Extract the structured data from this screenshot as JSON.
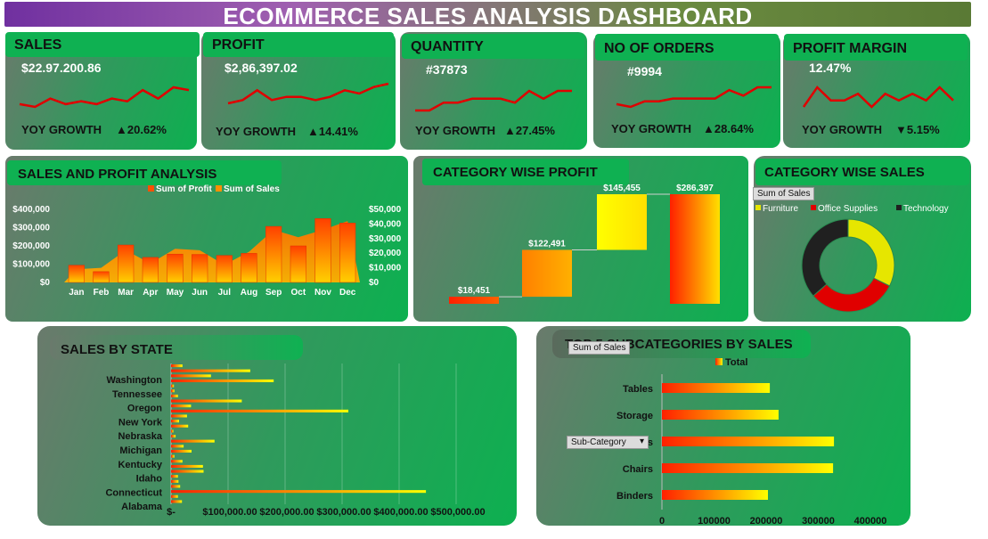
{
  "title": "ECOMMERCE SALES ANALYSIS DASHBOARD",
  "kpis": [
    {
      "label": "SALES",
      "value": "$22.97.200.86",
      "growth_label": "YOY GROWTH",
      "growth": "▲20.62%",
      "trend": [
        5,
        4,
        7,
        5,
        6,
        5,
        7,
        6,
        10,
        7,
        11,
        10
      ]
    },
    {
      "label": "PROFIT",
      "value": "$2,86,397.02",
      "growth_label": "YOY GROWTH",
      "growth": "▲14.41%",
      "trend": [
        4,
        5,
        8,
        5,
        6,
        6,
        5,
        6,
        8,
        7,
        9,
        10
      ]
    },
    {
      "label": "QUANTITY",
      "value": "#37873",
      "growth_label": "YOY GROWTH",
      "growth": "▲27.45%",
      "trend": [
        4,
        4,
        6,
        6,
        7,
        7,
        7,
        6,
        9,
        7,
        9,
        9
      ]
    },
    {
      "label": "NO OF ORDERS",
      "value": "#9994",
      "growth_label": "YOY GROWTH",
      "growth": "▲28.64%",
      "trend": [
        5,
        4,
        6,
        6,
        7,
        7,
        7,
        7,
        10,
        8,
        11,
        11
      ]
    },
    {
      "label": "PROFIT MARGIN",
      "value": "12.47%",
      "growth_label": "YOY GROWTH",
      "growth": "▼5.15%",
      "trend": [
        6,
        9,
        7,
        7,
        8,
        6,
        8,
        7,
        8,
        7,
        9,
        7
      ]
    }
  ],
  "colors": {
    "card_green": "#0fb152",
    "line_red": "#e00000",
    "bar_orange": "#ff8000",
    "bar_yellow": "#ffff00",
    "bar_red": "#ff2000"
  },
  "chart_data": [
    {
      "type": "bar",
      "title": "SALES AND PROFIT ANALYSIS",
      "categories": [
        "Jan",
        "Feb",
        "Mar",
        "Apr",
        "May",
        "Jun",
        "Jul",
        "Aug",
        "Sep",
        "Oct",
        "Nov",
        "Dec"
      ],
      "series": [
        {
          "name": "Sum of Sales",
          "values": [
            94000,
            59000,
            205000,
            137000,
            155000,
            153000,
            148000,
            159000,
            307000,
            200000,
            350000,
            325000
          ],
          "axis": "left"
        },
        {
          "name": "Sum of Profit",
          "values": [
            9000,
            10000,
            22000,
            13000,
            23000,
            22000,
            12000,
            21000,
            36000,
            31000,
            36000,
            42000
          ],
          "axis": "right"
        }
      ],
      "left_ticks": [
        "$400,000",
        "$300,000",
        "$200,000",
        "$100,000",
        "$0"
      ],
      "right_ticks": [
        "$50,000",
        "$40,000",
        "$30,000",
        "$20,000",
        "$10,000",
        "$0"
      ],
      "ylim": [
        0,
        400000
      ],
      "ylim_right": [
        0,
        50000
      ],
      "legend": [
        "Sum of Profit",
        "Sum of Sales"
      ]
    },
    {
      "type": "bar",
      "title": "CATEGORY WISE PROFIT",
      "subtype": "waterfall",
      "values": [
        18451,
        122491,
        145455,
        286397
      ],
      "labels": [
        "$18,451",
        "$122,491",
        "$145,455",
        "$286,397"
      ]
    },
    {
      "type": "pie",
      "title": "CATEGORY WISE SALES",
      "donut": true,
      "field_chip": "Sum of Sales",
      "categories": [
        "Furniture",
        "Office Supplies",
        "Technology"
      ],
      "values": [
        741999,
        719047,
        836154
      ],
      "colors": [
        "#e6e600",
        "#e00000",
        "#202020"
      ]
    },
    {
      "type": "bar",
      "title": "SALES BY STATE",
      "orientation": "horizontal",
      "state_labels": [
        "Washington",
        "Tennessee",
        "Oregon",
        "New York",
        "Nebraska",
        "Michigan",
        "Kentucky",
        "Idaho",
        "Connecticut",
        "Alabama"
      ],
      "x_ticks": [
        "$-",
        "$100,000.00",
        "$200,000.00",
        "$300,000.00",
        "$400,000.00",
        "$500,000.00"
      ],
      "xlim": [
        0,
        500000
      ],
      "values": [
        20000,
        138870,
        70000,
        180000,
        5000,
        6000,
        12000,
        124000,
        35000,
        310876,
        28000,
        14000,
        30000,
        4000,
        8000,
        76270,
        22000,
        36000,
        6000,
        20000,
        56000,
        57000,
        12000,
        13000,
        16000,
        447000,
        12000,
        19000
      ]
    },
    {
      "type": "bar",
      "title": "TOP 5 SUBCATEGORIES BY SALES",
      "orientation": "horizontal",
      "legend": "Total",
      "field_chip": "Sum of Sales",
      "filter_chip": "Sub-Category",
      "categories": [
        "Tables",
        "Storage",
        "Phones",
        "Chairs",
        "Binders"
      ],
      "visible_labels": [
        "Tables",
        "Storage",
        "es",
        "Chairs",
        "Binders"
      ],
      "values": [
        206966,
        223844,
        330007,
        328449,
        203413
      ],
      "x_ticks": [
        "0",
        "100000",
        "200000",
        "300000",
        "400000"
      ],
      "xlim": [
        0,
        400000
      ]
    }
  ]
}
